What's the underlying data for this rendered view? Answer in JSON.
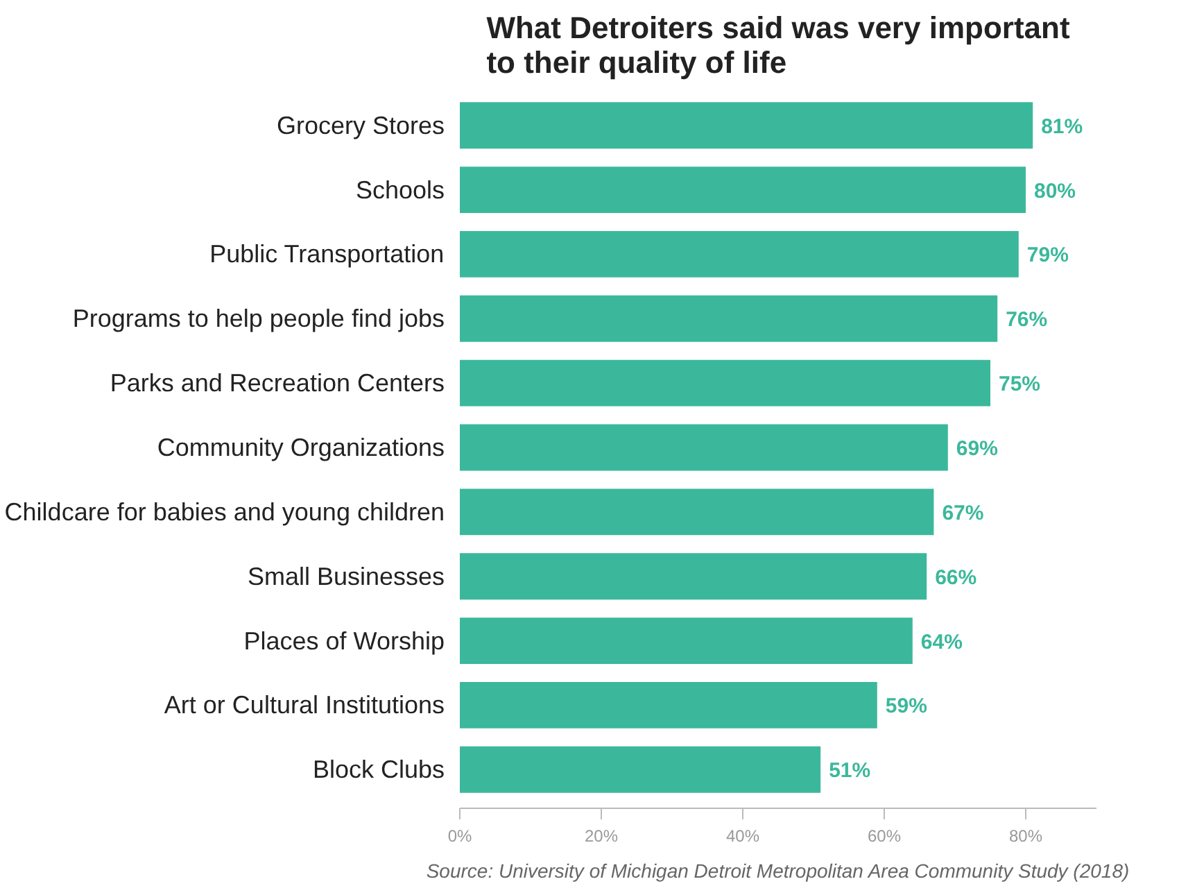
{
  "chart_data": {
    "type": "bar",
    "orientation": "horizontal",
    "title": "What Detroiters said was very important\nto their quality of life",
    "categories": [
      "Grocery Stores",
      "Schools",
      "Public Transportation",
      "Programs to help people find jobs",
      "Parks and Recreation Centers",
      "Community Organizations",
      "Childcare for babies and young children",
      "Small Businesses",
      "Places of Worship",
      "Art or Cultural Institutions",
      "Block Clubs"
    ],
    "values": [
      81,
      80,
      79,
      76,
      75,
      69,
      67,
      66,
      64,
      59,
      51
    ],
    "value_labels": [
      "81%",
      "80%",
      "79%",
      "76%",
      "75%",
      "69%",
      "67%",
      "66%",
      "64%",
      "59%",
      "51%"
    ],
    "color": "#3bb89b",
    "xlim": [
      0,
      90
    ],
    "xticks": [
      {
        "value": 0,
        "label": "0%"
      },
      {
        "value": 20,
        "label": "20%"
      },
      {
        "value": 40,
        "label": "40%"
      },
      {
        "value": 60,
        "label": "60%"
      },
      {
        "value": 80,
        "label": "80%"
      }
    ],
    "grid": false,
    "annotations": [
      "Source: University of Michigan Detroit Metropolitan Area Community Study (2018)"
    ]
  }
}
